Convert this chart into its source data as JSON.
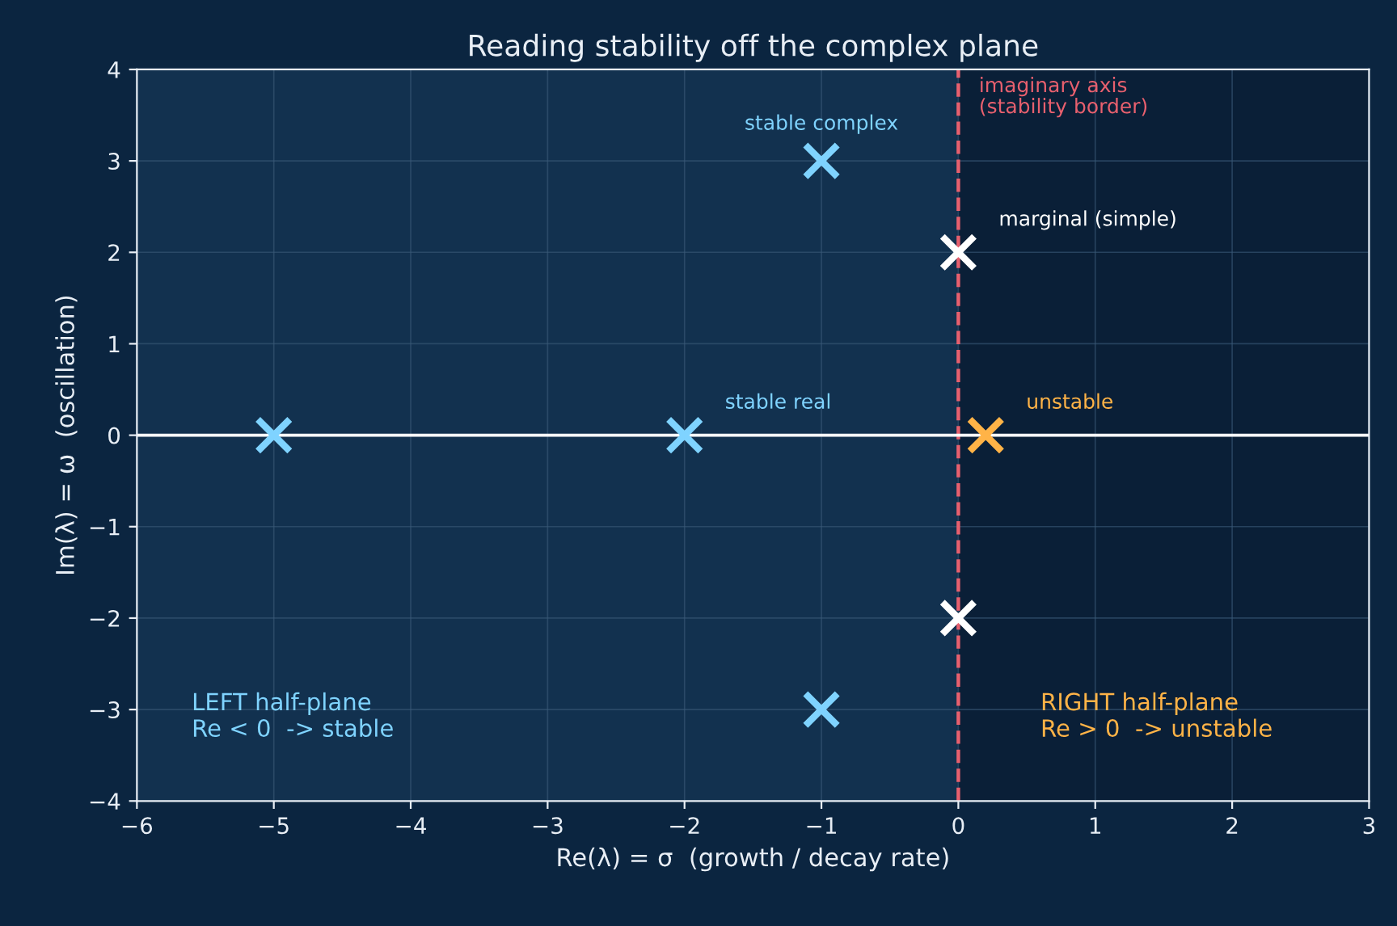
{
  "chart_data": {
    "type": "scatter",
    "title": "Reading stability off the complex plane",
    "xlabel": "Re(λ) = σ  (growth / decay rate)",
    "ylabel": "Im(λ) = ω  (oscillation)",
    "xlim": [
      -6,
      3
    ],
    "ylim": [
      -4,
      4
    ],
    "xticks": [
      -6,
      -5,
      -4,
      -3,
      -2,
      -1,
      0,
      1,
      2,
      3
    ],
    "yticks": [
      -4,
      -3,
      -2,
      -1,
      0,
      1,
      2,
      3,
      4
    ],
    "grid": true,
    "marker": "cross",
    "series": [
      {
        "x": [
          -5,
          -2
        ],
        "values": [
          0,
          0
        ],
        "color": "#7fd3ff"
      },
      {
        "x": [
          -1,
          -1
        ],
        "values": [
          3,
          -3
        ],
        "color": "#7fd3ff"
      },
      {
        "x": [
          0,
          0
        ],
        "values": [
          2,
          -2
        ],
        "color": "#ffffff"
      },
      {
        "x": [
          0.2
        ],
        "values": [
          0
        ],
        "color": "#ffb347"
      }
    ],
    "ref_lines": [
      {
        "axis": "x",
        "value": 0,
        "label": "imaginary axis\n(stability border)",
        "color": "#e8606e",
        "line_style": "dashed"
      },
      {
        "axis": "y",
        "value": 0,
        "color": "#ffffff",
        "line_style": "solid"
      }
    ],
    "bands": [
      {
        "axis": "x",
        "from": -6,
        "to": 0,
        "label": "LEFT half-plane\nRe < 0  -> stable",
        "color": "#12314f"
      },
      {
        "axis": "x",
        "from": 0,
        "to": 3,
        "label": "RIGHT half-plane\nRe > 0  -> unstable",
        "color": "#0a1f37"
      }
    ],
    "annotations": [
      {
        "text": "stable complex",
        "x": -1,
        "y": 3
      },
      {
        "text": "marginal (simple)",
        "x": 0,
        "y": 2
      },
      {
        "text": "stable real",
        "x": -2,
        "y": 0
      },
      {
        "text": "unstable",
        "x": 0.2,
        "y": 0
      }
    ]
  }
}
